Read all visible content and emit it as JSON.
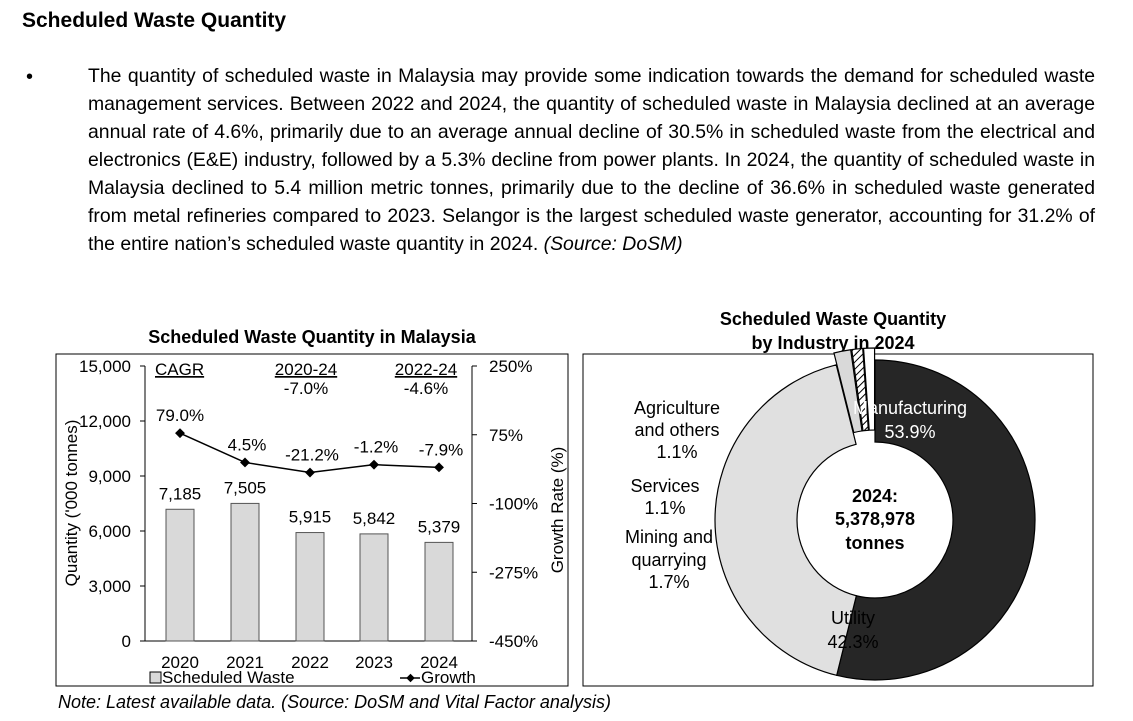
{
  "heading": "Scheduled Waste Quantity",
  "paragraph": {
    "bullet": "•",
    "text": "The quantity of scheduled waste in Malaysia may provide some indication towards the demand for scheduled waste management services. Between 2022 and 2024, the quantity of scheduled waste in Malaysia declined at an average annual rate of 4.6%, primarily due to an average annual decline of 30.5% in scheduled waste from the electrical and electronics (E&E) industry, followed by a 5.3% decline from power plants. In 2024, the quantity of scheduled waste in Malaysia declined to 5.4 million metric tonnes, primarily due to the decline of 36.6% in scheduled waste generated from metal refineries compared to 2023. Selangor is the largest scheduled waste generator, accounting for 31.2% of the entire nation’s scheduled waste quantity in 2024.",
    "source": "(Source: DoSM)"
  },
  "chart_data": [
    {
      "type": "bar",
      "title": "Scheduled Waste Quantity in Malaysia",
      "categories": [
        "2020",
        "2021",
        "2022",
        "2023",
        "2024"
      ],
      "series": [
        {
          "name": "Scheduled Waste",
          "values": [
            7185,
            7505,
            5915,
            5842,
            5379
          ],
          "labels": [
            "7,185",
            "7,505",
            "5,915",
            "5,842",
            "5,379"
          ],
          "color": "#d9d9d9"
        },
        {
          "name": "Growth",
          "type": "line",
          "axis": "right",
          "values": [
            79.0,
            4.5,
            -21.2,
            -1.2,
            -7.9
          ],
          "labels": [
            "79.0%",
            "4.5%",
            "-21.2%",
            "-1.2%",
            "-7.9%"
          ],
          "color": "#000000"
        }
      ],
      "ylabel": "Quantity ('000 tonnes)",
      "y2label": "Growth Rate (%)",
      "ylim": [
        0,
        15000
      ],
      "y2lim": [
        -450,
        250
      ],
      "yticks": [
        0,
        3000,
        6000,
        9000,
        12000,
        15000
      ],
      "ytick_labels": [
        "0",
        "3,000",
        "6,000",
        "9,000",
        "12,000",
        "15,000"
      ],
      "y2ticks": [
        -450,
        -275,
        -100,
        75,
        250
      ],
      "y2tick_labels": [
        "-450%",
        "-275%",
        "-100%",
        "75%",
        "250%"
      ],
      "annotations": {
        "cagr_label": "CAGR",
        "period1_label": "2020-24",
        "period1_value": "-7.0%",
        "period2_label": "2022-24",
        "period2_value": "-4.6%"
      },
      "legend": "bottom"
    },
    {
      "type": "pie",
      "variant": "donut",
      "title_line1": "Scheduled Waste Quantity",
      "title_line2": "by Industry in 2024",
      "center_line1": "2024:",
      "center_line2": "5,378,978",
      "center_line3": "tonnes",
      "slices": [
        {
          "name": "Manufacturing",
          "value": 53.9,
          "label": "53.9%",
          "color": "#262626"
        },
        {
          "name": "Utility",
          "value": 42.3,
          "label": "42.3%",
          "color": "#e0e0e0"
        },
        {
          "name": "Mining and quarrying",
          "line1": "Mining and",
          "line2": "quarrying",
          "value": 1.7,
          "label": "1.7%",
          "color": "#d9d9d9"
        },
        {
          "name": "Services",
          "value": 1.1,
          "label": "1.1%",
          "color": "hatch"
        },
        {
          "name": "Agriculture and others",
          "line1": "Agriculture",
          "line2": "and others",
          "value": 1.1,
          "label": "1.1%",
          "color": "#ffffff"
        }
      ]
    }
  ],
  "note": "Note: Latest available data. (Source: DoSM and Vital Factor analysis)"
}
